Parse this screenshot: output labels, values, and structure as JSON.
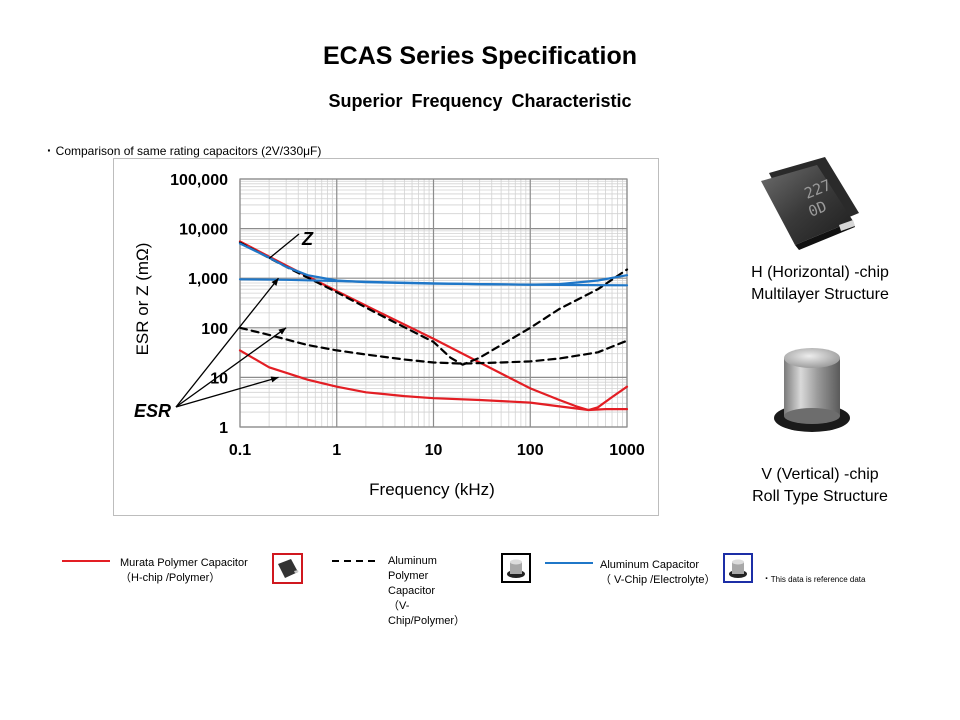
{
  "page": {
    "title": "ECAS Series Specification",
    "subtitle": "Superior  Frequency  Characteristic",
    "note": "Comparison of same rating capacitors (2V/330μF)"
  },
  "photos": {
    "h_chip": {
      "marking_line1": "227",
      "marking_line2": "0D",
      "caption_line1": "H (Horizontal) -chip",
      "caption_line2": "Multilayer Structure"
    },
    "v_chip": {
      "caption_line1": "V (Vertical) -chip",
      "caption_line2": "Roll Type Structure"
    }
  },
  "legend": {
    "items": [
      {
        "key": "murata",
        "line1": "Murata Polymer Capacitor",
        "line2": "（H-chip /Polymer）",
        "color": "#e31e24",
        "style": "solid"
      },
      {
        "key": "aluminum_polymer",
        "lines": [
          "Aluminum",
          "Polymer",
          "Capacitor",
          "（V-",
          "Chip/Polymer）"
        ],
        "color": "#000000",
        "style": "dashed"
      },
      {
        "key": "aluminum",
        "line1": "Aluminum Capacitor",
        "line2": "（ V-Chip /Electrolyte）",
        "color": "#1f77c8",
        "style": "solid"
      }
    ],
    "reference_note": "This data is reference data",
    "box_colors": {
      "murata": "#d0181f",
      "aluminum_polymer": "#000000",
      "aluminum": "#1c2ea6"
    }
  },
  "chart_data": {
    "type": "line",
    "xlabel": "Frequency (kHz)",
    "ylabel": "ESR or Z (mΩ)",
    "x_scale": "log",
    "y_scale": "log",
    "xlim": [
      0.1,
      1000
    ],
    "ylim": [
      1,
      100000
    ],
    "x_ticks": [
      0.1,
      1,
      10,
      100,
      1000
    ],
    "x_tick_labels": [
      "0.1",
      "1",
      "10",
      "100",
      "1000"
    ],
    "y_ticks": [
      1,
      10,
      100,
      1000,
      10000,
      100000
    ],
    "y_tick_labels": [
      "1",
      "10",
      "100",
      "1,000",
      "10,000",
      "100,000"
    ],
    "grid": true,
    "annotations": [
      {
        "text": "Z",
        "arrow_to": [
          0.2,
          2500
        ]
      },
      {
        "text": "ESR",
        "arrows_to": [
          [
            0.25,
            1000
          ],
          [
            0.3,
            100
          ],
          [
            0.25,
            10
          ]
        ]
      }
    ],
    "series": [
      {
        "key": "murata_z",
        "color": "#e31e24",
        "style": "solid",
        "x": [
          0.1,
          0.3,
          1,
          3,
          10,
          30,
          100,
          200,
          300,
          400,
          500,
          700,
          1000
        ],
        "y": [
          5500,
          1800,
          550,
          190,
          60,
          20,
          6,
          3.5,
          2.6,
          2.2,
          2.5,
          4,
          6.5
        ]
      },
      {
        "key": "murata_esr",
        "color": "#e31e24",
        "style": "solid",
        "x": [
          0.1,
          0.2,
          0.5,
          1,
          2,
          5,
          10,
          30,
          100,
          200,
          400,
          600,
          1000
        ],
        "y": [
          35,
          16,
          9,
          6.5,
          5,
          4.2,
          3.8,
          3.5,
          3.1,
          2.6,
          2.2,
          2.3,
          2.3
        ]
      },
      {
        "key": "aluminum_polymer_z",
        "color": "#000000",
        "style": "dashed",
        "x": [
          0.1,
          0.3,
          1,
          3,
          10,
          15,
          20,
          30,
          50,
          100,
          200,
          500,
          1000
        ],
        "y": [
          5200,
          1700,
          520,
          170,
          52,
          25,
          18,
          25,
          45,
          100,
          240,
          600,
          1500
        ]
      },
      {
        "key": "aluminum_polymer_esr",
        "color": "#000000",
        "style": "dashed",
        "x": [
          0.1,
          0.2,
          0.5,
          1,
          2,
          5,
          10,
          20,
          50,
          100,
          200,
          500,
          1000
        ],
        "y": [
          100,
          72,
          45,
          35,
          29,
          23,
          20,
          19,
          20,
          21,
          24,
          32,
          55
        ]
      },
      {
        "key": "aluminum_z",
        "color": "#1f77c8",
        "style": "solid",
        "x": [
          0.1,
          0.2,
          0.3,
          0.5,
          1,
          2,
          5,
          10,
          30,
          100,
          200,
          500,
          1000
        ],
        "y": [
          5000,
          2600,
          1700,
          1150,
          900,
          830,
          800,
          780,
          760,
          740,
          760,
          900,
          1150
        ]
      },
      {
        "key": "aluminum_esr",
        "color": "#1f77c8",
        "style": "solid",
        "x": [
          0.1,
          0.3,
          1,
          3,
          10,
          30,
          100,
          300,
          1000
        ],
        "y": [
          950,
          930,
          880,
          830,
          790,
          760,
          740,
          730,
          720
        ]
      }
    ]
  }
}
